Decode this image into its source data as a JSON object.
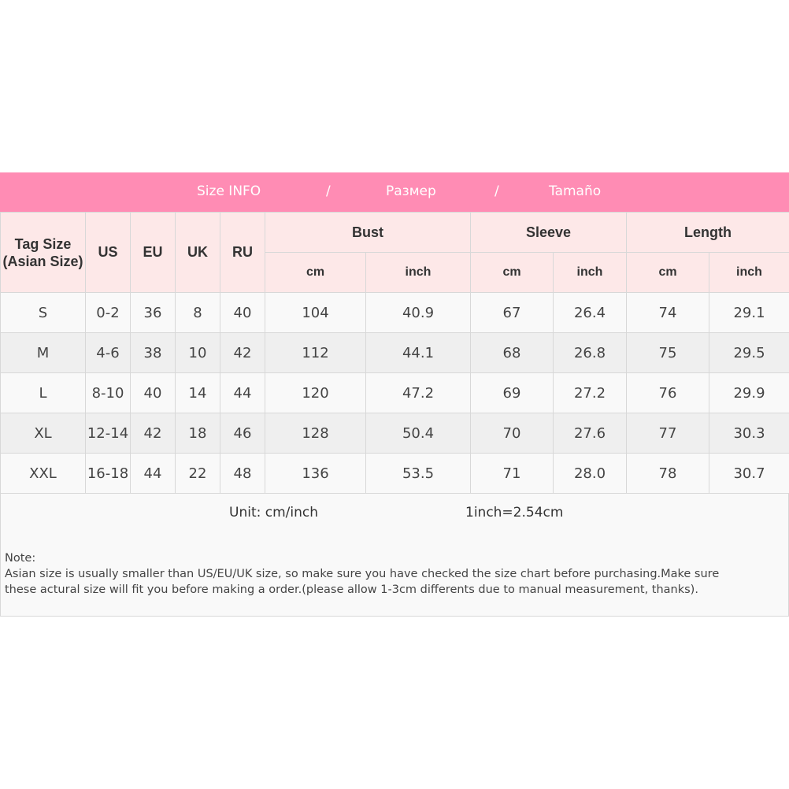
{
  "banner": {
    "part1": "Size INFO",
    "sep1": "/",
    "part2": "Размер",
    "sep2": "/",
    "part3": "Tamaño",
    "color": "#ff8cb4"
  },
  "header": {
    "tag_size": "Tag Size (Asian Size)",
    "us": "US",
    "eu": "EU",
    "uk": "UK",
    "ru": "RU",
    "bust": "Bust",
    "sleeve": "Sleeve",
    "length": "Length",
    "cm": "cm",
    "inch": "inch"
  },
  "rows": [
    [
      "S",
      "0-2",
      "36",
      "8",
      "40",
      "104",
      "40.9",
      "67",
      "26.4",
      "74",
      "29.1"
    ],
    [
      "M",
      "4-6",
      "38",
      "10",
      "42",
      "112",
      "44.1",
      "68",
      "26.8",
      "75",
      "29.5"
    ],
    [
      "L",
      "8-10",
      "40",
      "14",
      "44",
      "120",
      "47.2",
      "69",
      "27.2",
      "76",
      "29.9"
    ],
    [
      "XL",
      "12-14",
      "42",
      "18",
      "46",
      "128",
      "50.4",
      "70",
      "27.6",
      "77",
      "30.3"
    ],
    [
      "XXL",
      "16-18",
      "44",
      "22",
      "48",
      "136",
      "53.5",
      "71",
      "28.0",
      "78",
      "30.7"
    ]
  ],
  "unit": {
    "label": "Unit: cm/inch",
    "conversion": "1inch=2.54cm"
  },
  "note": {
    "title": "Note:",
    "line1": "Asian size is usually smaller than US/EU/UK size, so make sure you have checked the size chart before purchasing.Make sure",
    "line2": "these actural size will fit you before making a order.(please allow 1-3cm differents due to manual measurement, thanks)."
  }
}
